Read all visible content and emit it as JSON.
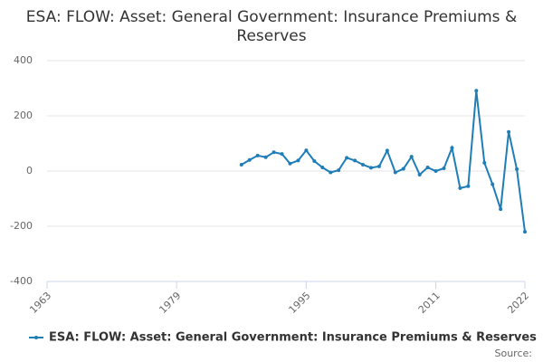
{
  "chart_data": {
    "type": "line",
    "title": "ESA: FLOW: Asset: General Government: Insurance Premiums & Reserves",
    "source": "Source:",
    "x": [
      1987,
      1988,
      1989,
      1990,
      1991,
      1992,
      1993,
      1994,
      1995,
      1996,
      1997,
      1998,
      1999,
      2000,
      2001,
      2002,
      2003,
      2004,
      2005,
      2006,
      2007,
      2008,
      2009,
      2010,
      2011,
      2012,
      2013,
      2014,
      2015,
      2016,
      2017,
      2018,
      2019,
      2020,
      2021,
      2022
    ],
    "series": [
      {
        "name": "ESA: FLOW: Asset: General Government: Insurance Premiums & Reserves",
        "color": "#1f7db8",
        "values": [
          23,
          40,
          56,
          50,
          68,
          62,
          27,
          38,
          75,
          36,
          13,
          -5,
          3,
          48,
          38,
          23,
          12,
          17,
          74,
          -5,
          8,
          52,
          -13,
          13,
          0,
          10,
          84,
          -62,
          -55,
          291,
          30,
          -48,
          -138,
          142,
          7,
          -220
        ]
      }
    ],
    "xlim": [
      1963,
      2022
    ],
    "xticks": [
      1963,
      1979,
      1995,
      2011,
      2022
    ],
    "ylim": [
      -400,
      400
    ],
    "yticks": [
      -400,
      -200,
      0,
      200,
      400
    ],
    "grid": true,
    "legend": "bottom"
  }
}
